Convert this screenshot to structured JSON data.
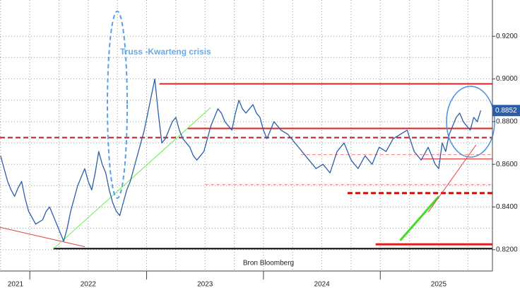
{
  "chart_data": {
    "type": "line",
    "annotation": "Truss -Kwarteng crisis",
    "source": "Bron Bloomberg",
    "xlim": [
      2021.745,
      2025.96
    ],
    "xticks": [
      2021,
      2022,
      2023,
      2024,
      2025
    ],
    "ylim": [
      0.81,
      0.937
    ],
    "yticks": [
      {
        "value": 0.82,
        "label": "0.8200"
      },
      {
        "value": 0.84,
        "label": "0.8400"
      },
      {
        "value": 0.86,
        "label": "0.8600"
      },
      {
        "value": 0.88,
        "label": "0.8800"
      },
      {
        "value": 0.9,
        "label": "0.9000"
      },
      {
        "value": 0.92,
        "label": "0.9200"
      }
    ],
    "grid": true,
    "series": [
      {
        "color": "#2b5ea8",
        "x": [
          2021.75,
          2021.78,
          2021.81,
          2021.84,
          2021.87,
          2021.9,
          2021.93,
          2021.96,
          2021.99,
          2022.02,
          2022.05,
          2022.08,
          2022.11,
          2022.14,
          2022.17,
          2022.2,
          2022.23,
          2022.26,
          2022.29,
          2022.32,
          2022.35,
          2022.38,
          2022.41,
          2022.44,
          2022.47,
          2022.5,
          2022.53,
          2022.56,
          2022.59,
          2022.62,
          2022.65,
          2022.68,
          2022.71,
          2022.74,
          2022.77,
          2022.8,
          2022.83,
          2022.86,
          2022.89,
          2022.92,
          2022.95,
          2022.98,
          2023.01,
          2023.04,
          2023.07,
          2023.1,
          2023.13,
          2023.16,
          2023.19,
          2023.22,
          2023.25,
          2023.28,
          2023.31,
          2023.34,
          2023.37,
          2023.4,
          2023.43,
          2023.46,
          2023.49,
          2023.52,
          2023.55,
          2023.58,
          2023.61,
          2023.64,
          2023.67,
          2023.7,
          2023.73,
          2023.76,
          2023.79,
          2023.82,
          2023.85,
          2023.88,
          2023.91,
          2023.94,
          2023.97,
          2024.0,
          2024.03,
          2024.06,
          2024.09,
          2024.12,
          2024.15,
          2024.18,
          2024.21,
          2024.24,
          2024.27,
          2024.3,
          2024.33,
          2024.36,
          2024.39,
          2024.42,
          2024.45,
          2024.48,
          2024.51,
          2024.54,
          2024.57,
          2024.6,
          2024.63,
          2024.66,
          2024.69,
          2024.72,
          2024.75,
          2024.78,
          2024.81,
          2024.84,
          2024.87,
          2024.9,
          2024.93,
          2024.96,
          2024.99,
          2025.02,
          2025.05,
          2025.08,
          2025.11,
          2025.14,
          2025.17,
          2025.2,
          2025.23,
          2025.26,
          2025.29,
          2025.32,
          2025.35,
          2025.38,
          2025.41,
          2025.44,
          2025.47,
          2025.5,
          2025.53,
          2025.56,
          2025.59,
          2025.62,
          2025.65,
          2025.68,
          2025.71,
          2025.74,
          2025.77,
          2025.8,
          2025.83,
          2025.86
        ],
        "values": [
          0.864,
          0.858,
          0.852,
          0.848,
          0.845,
          0.849,
          0.852,
          0.844,
          0.838,
          0.835,
          0.832,
          0.833,
          0.834,
          0.838,
          0.84,
          0.836,
          0.832,
          0.828,
          0.824,
          0.83,
          0.838,
          0.844,
          0.85,
          0.854,
          0.858,
          0.852,
          0.848,
          0.856,
          0.866,
          0.86,
          0.856,
          0.848,
          0.842,
          0.838,
          0.836,
          0.842,
          0.848,
          0.852,
          0.858,
          0.864,
          0.87,
          0.876,
          0.884,
          0.892,
          0.9,
          0.884,
          0.87,
          0.872,
          0.876,
          0.88,
          0.882,
          0.876,
          0.872,
          0.87,
          0.868,
          0.864,
          0.862,
          0.864,
          0.866,
          0.872,
          0.878,
          0.882,
          0.886,
          0.884,
          0.88,
          0.878,
          0.876,
          0.884,
          0.89,
          0.886,
          0.884,
          0.886,
          0.888,
          0.884,
          0.882,
          0.876,
          0.872,
          0.876,
          0.88,
          0.878,
          0.876,
          0.875,
          0.874,
          0.872,
          0.87,
          0.868,
          0.866,
          0.864,
          0.862,
          0.86,
          0.858,
          0.859,
          0.86,
          0.858,
          0.856,
          0.861,
          0.866,
          0.868,
          0.87,
          0.866,
          0.862,
          0.86,
          0.858,
          0.861,
          0.864,
          0.862,
          0.86,
          0.864,
          0.868,
          0.867,
          0.866,
          0.869,
          0.872,
          0.873,
          0.874,
          0.875,
          0.876,
          0.871,
          0.866,
          0.864,
          0.862,
          0.865,
          0.868,
          0.864,
          0.86,
          0.858,
          0.87,
          0.866,
          0.874,
          0.878,
          0.882,
          0.884,
          0.88,
          0.878,
          0.876,
          0.882,
          0.88,
          0.8852
        ]
      }
    ],
    "levels": [
      {
        "value": 0.8977,
        "from": 2023.11,
        "to": 2025.96,
        "color": "#e02020",
        "style": "solid",
        "width": 2
      },
      {
        "value": 0.8768,
        "from": 2023.35,
        "to": 2025.96,
        "color": "#e02020",
        "style": "solid",
        "width": 2
      },
      {
        "value": 0.8725,
        "from": 2021.745,
        "to": 2025.96,
        "color": "#b01c2e",
        "style": "dashed",
        "width": 2
      },
      {
        "value": 0.8645,
        "from": 2024.32,
        "to": 2025.96,
        "color": "#f08080",
        "style": "dashed",
        "width": 1
      },
      {
        "value": 0.8625,
        "from": 2025.35,
        "to": 2025.96,
        "color": "#e02020",
        "style": "solid",
        "width": 1
      },
      {
        "value": 0.8505,
        "from": 2023.5,
        "to": 2025.96,
        "color": "#f08080",
        "style": "dashed",
        "width": 1
      },
      {
        "value": 0.8465,
        "from": 2024.72,
        "to": 2025.96,
        "color": "#e00000",
        "style": "dashed",
        "width": 3
      },
      {
        "value": 0.8225,
        "from": 2024.96,
        "to": 2025.96,
        "color": "#e02020",
        "style": "solid",
        "width": 3
      },
      {
        "value": 0.8205,
        "from": 2022.2,
        "to": 2025.96,
        "color": "#000000",
        "style": "solid",
        "width": 2
      }
    ],
    "trendlines": [
      {
        "x": [
          2021.745,
          2022.47
        ],
        "y": [
          0.8305,
          0.8214
        ],
        "color": "#e04040",
        "width": 1
      },
      {
        "x": [
          2022.2,
          2023.55
        ],
        "y": [
          0.8203,
          0.8867
        ],
        "color": "#66ee44",
        "width": 1
      },
      {
        "x": [
          2025.17,
          2025.5
        ],
        "y": [
          0.8243,
          0.8449
        ],
        "color": "#44dd22",
        "width": 3
      },
      {
        "x": [
          2025.41,
          2025.82
        ],
        "y": [
          0.8376,
          0.8691
        ],
        "color": "#e04040",
        "width": 1
      }
    ]
  }
}
